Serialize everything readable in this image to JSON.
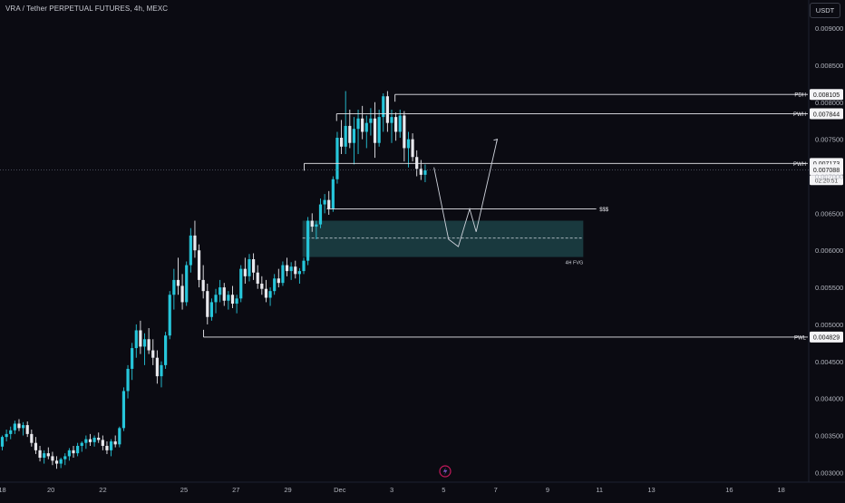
{
  "header": {
    "symbol_title": "VRA / Tether PERPETUAL FUTURES, 4h, MEXC",
    "currency_button": "USDT"
  },
  "chart_data": {
    "type": "candlestick",
    "y_axis": {
      "ylim": [
        0.00287,
        0.00938
      ],
      "ticks": [
        "0.003000",
        "0.003500",
        "0.004000",
        "0.004500",
        "0.005000",
        "0.005500",
        "0.006000",
        "0.006500",
        "0.007000",
        "0.007500",
        "0.008000",
        "0.008500",
        "0.009000"
      ],
      "tick_values": [
        0.003,
        0.0035,
        0.004,
        0.0045,
        0.005,
        0.0055,
        0.006,
        0.0065,
        0.007,
        0.0075,
        0.008,
        0.0085,
        0.009
      ]
    },
    "x_axis": {
      "labels": [
        "18",
        "20",
        "22",
        "25",
        "27",
        "29",
        "Dec",
        "3",
        "5",
        "7",
        "9",
        "11",
        "13",
        "16",
        "18"
      ],
      "label_index": [
        0,
        15,
        31,
        56,
        72,
        88,
        104,
        120,
        136,
        152,
        168,
        184,
        200,
        224,
        240
      ]
    },
    "candle_colors": {
      "up": "#26c6da",
      "down": "#e9e9ee"
    },
    "candles": [
      [
        0.00335,
        0.0035,
        0.0033,
        0.00348
      ],
      [
        0.00348,
        0.00358,
        0.00342,
        0.00352
      ],
      [
        0.00352,
        0.00362,
        0.00345,
        0.00357
      ],
      [
        0.00357,
        0.0037,
        0.00352,
        0.00366
      ],
      [
        0.00366,
        0.00372,
        0.00356,
        0.0036
      ],
      [
        0.0036,
        0.00368,
        0.0035,
        0.00364
      ],
      [
        0.00364,
        0.00369,
        0.00348,
        0.00352
      ],
      [
        0.00352,
        0.00358,
        0.00335,
        0.0034
      ],
      [
        0.0034,
        0.00348,
        0.00325,
        0.0033
      ],
      [
        0.0033,
        0.00336,
        0.00315,
        0.0032
      ],
      [
        0.0032,
        0.0033,
        0.00312,
        0.00326
      ],
      [
        0.00326,
        0.00334,
        0.00318,
        0.00322
      ],
      [
        0.00322,
        0.00328,
        0.0031,
        0.00316
      ],
      [
        0.00316,
        0.00322,
        0.00305,
        0.00312
      ],
      [
        0.00312,
        0.0032,
        0.00306,
        0.00318
      ],
      [
        0.00318,
        0.00326,
        0.0031,
        0.00322
      ],
      [
        0.00322,
        0.00333,
        0.00316,
        0.0033
      ],
      [
        0.0033,
        0.00336,
        0.0032,
        0.00326
      ],
      [
        0.00326,
        0.0034,
        0.00322,
        0.00336
      ],
      [
        0.00336,
        0.00342,
        0.00328,
        0.0034
      ],
      [
        0.0034,
        0.0035,
        0.00332,
        0.00345
      ],
      [
        0.00345,
        0.00352,
        0.00336,
        0.00341
      ],
      [
        0.00341,
        0.0035,
        0.00335,
        0.00347
      ],
      [
        0.00347,
        0.00354,
        0.0034,
        0.00344
      ],
      [
        0.00344,
        0.0035,
        0.0033,
        0.00336
      ],
      [
        0.00336,
        0.00342,
        0.00325,
        0.0033
      ],
      [
        0.0033,
        0.00345,
        0.00322,
        0.00342
      ],
      [
        0.00342,
        0.0035,
        0.00334,
        0.00338
      ],
      [
        0.00338,
        0.00362,
        0.00334,
        0.0036
      ],
      [
        0.0036,
        0.00415,
        0.00356,
        0.0041
      ],
      [
        0.0041,
        0.00445,
        0.004,
        0.0044
      ],
      [
        0.0044,
        0.00475,
        0.00425,
        0.00468
      ],
      [
        0.00468,
        0.005,
        0.00455,
        0.00492
      ],
      [
        0.00492,
        0.00505,
        0.0046,
        0.0047
      ],
      [
        0.0047,
        0.00488,
        0.00445,
        0.0048
      ],
      [
        0.0048,
        0.00495,
        0.0046,
        0.00465
      ],
      [
        0.00465,
        0.0048,
        0.00445,
        0.00455
      ],
      [
        0.00455,
        0.00465,
        0.0042,
        0.0043
      ],
      [
        0.0043,
        0.0045,
        0.00415,
        0.00445
      ],
      [
        0.00445,
        0.0049,
        0.0044,
        0.00485
      ],
      [
        0.00485,
        0.00545,
        0.0048,
        0.0054
      ],
      [
        0.0054,
        0.00575,
        0.0052,
        0.0056
      ],
      [
        0.0056,
        0.0059,
        0.0054,
        0.00552
      ],
      [
        0.00552,
        0.00568,
        0.0052,
        0.0053
      ],
      [
        0.0053,
        0.00585,
        0.00525,
        0.0058
      ],
      [
        0.0058,
        0.0063,
        0.0057,
        0.0062
      ],
      [
        0.0062,
        0.0064,
        0.0059,
        0.006
      ],
      [
        0.006,
        0.00608,
        0.0055,
        0.0056
      ],
      [
        0.0056,
        0.0058,
        0.00535,
        0.00545
      ],
      [
        0.00545,
        0.00555,
        0.005,
        0.0051
      ],
      [
        0.0051,
        0.00535,
        0.00505,
        0.0053
      ],
      [
        0.0053,
        0.00548,
        0.00515,
        0.0054
      ],
      [
        0.0054,
        0.0056,
        0.0053,
        0.0055
      ],
      [
        0.0055,
        0.00556,
        0.00525,
        0.00532
      ],
      [
        0.00532,
        0.00545,
        0.0052,
        0.0054
      ],
      [
        0.0054,
        0.00552,
        0.00522,
        0.00528
      ],
      [
        0.00528,
        0.0054,
        0.00515,
        0.00535
      ],
      [
        0.00535,
        0.0058,
        0.0053,
        0.00575
      ],
      [
        0.00575,
        0.0059,
        0.00555,
        0.00565
      ],
      [
        0.00565,
        0.00595,
        0.00558,
        0.00588
      ],
      [
        0.00588,
        0.00596,
        0.0056,
        0.0057
      ],
      [
        0.0057,
        0.0058,
        0.00548,
        0.00555
      ],
      [
        0.00555,
        0.00565,
        0.0054,
        0.00548
      ],
      [
        0.00548,
        0.0056,
        0.0053,
        0.00536
      ],
      [
        0.00536,
        0.0055,
        0.00525,
        0.00545
      ],
      [
        0.00545,
        0.00568,
        0.0054,
        0.00562
      ],
      [
        0.00562,
        0.00575,
        0.0055,
        0.00556
      ],
      [
        0.00556,
        0.00585,
        0.00552,
        0.0058
      ],
      [
        0.0058,
        0.0059,
        0.00565,
        0.00572
      ],
      [
        0.00572,
        0.00584,
        0.0056,
        0.00578
      ],
      [
        0.00578,
        0.00586,
        0.00562,
        0.00568
      ],
      [
        0.00568,
        0.00576,
        0.00555,
        0.00572
      ],
      [
        0.00572,
        0.0059,
        0.00568,
        0.00586
      ],
      [
        0.00586,
        0.00645,
        0.0058,
        0.0064
      ],
      [
        0.0064,
        0.0065,
        0.00625,
        0.00632
      ],
      [
        0.00632,
        0.0064,
        0.00615,
        0.00635
      ],
      [
        0.00635,
        0.0067,
        0.0063,
        0.00662
      ],
      [
        0.00662,
        0.00676,
        0.0065,
        0.00668
      ],
      [
        0.00668,
        0.0068,
        0.00648,
        0.00656
      ],
      [
        0.00656,
        0.007,
        0.00652,
        0.00696
      ],
      [
        0.00696,
        0.0076,
        0.0069,
        0.00752
      ],
      [
        0.00752,
        0.00776,
        0.0073,
        0.0074
      ],
      [
        0.0074,
        0.00815,
        0.0073,
        0.00768
      ],
      [
        0.00768,
        0.0079,
        0.00738,
        0.00745
      ],
      [
        0.00745,
        0.0078,
        0.00716,
        0.00764
      ],
      [
        0.00764,
        0.0079,
        0.0073,
        0.00778
      ],
      [
        0.00778,
        0.00795,
        0.0075,
        0.0076
      ],
      [
        0.0076,
        0.00782,
        0.00738,
        0.00772
      ],
      [
        0.00772,
        0.00792,
        0.00755,
        0.00778
      ],
      [
        0.00778,
        0.008,
        0.00725,
        0.00745
      ],
      [
        0.00745,
        0.0079,
        0.0074,
        0.0078
      ],
      [
        0.0078,
        0.00812,
        0.0076,
        0.00808
      ],
      [
        0.00808,
        0.00815,
        0.0076,
        0.00772
      ],
      [
        0.00772,
        0.0079,
        0.00745,
        0.0078
      ],
      [
        0.0078,
        0.00786,
        0.00748,
        0.0076
      ],
      [
        0.0076,
        0.0079,
        0.00752,
        0.00782
      ],
      [
        0.00782,
        0.00788,
        0.0072,
        0.00738
      ],
      [
        0.00738,
        0.0076,
        0.00712,
        0.0075
      ],
      [
        0.0075,
        0.00758,
        0.0072,
        0.00726
      ],
      [
        0.00726,
        0.00735,
        0.007,
        0.0071
      ],
      [
        0.0071,
        0.00722,
        0.00695,
        0.00702
      ],
      [
        0.00702,
        0.00716,
        0.00692,
        0.00708
      ]
    ],
    "candle_x_start_index": 0,
    "levels": [
      {
        "tag": "PDH",
        "value": 0.008105,
        "label": "0.008105",
        "from_index": 232
      },
      {
        "tag": "PWH",
        "value": 0.007844,
        "label": "0.007844",
        "from_index": 204
      },
      {
        "tag": "PWH",
        "value": 0.007173,
        "label": "0.007173",
        "from_index": 186
      },
      {
        "tag": "PWL",
        "value": 0.004829,
        "label": "0.004829",
        "from_index": 120
      }
    ],
    "current_price": {
      "label": "0.007088",
      "value": 0.007088,
      "countdown": "02:20:51"
    },
    "liquidity_line": {
      "label": "$$$",
      "value": 0.00656
    },
    "fvg_zone": {
      "label": "4H FVG",
      "top": 0.0064,
      "bottom": 0.00591,
      "mid": 0.006165
    },
    "projection": {
      "path": [
        [
          0.00712,
          0
        ],
        [
          0.00615,
          0
        ],
        [
          0.00605,
          0
        ],
        [
          0.00656,
          0
        ],
        [
          0.00625,
          0
        ],
        [
          0.0075,
          0
        ]
      ]
    }
  }
}
